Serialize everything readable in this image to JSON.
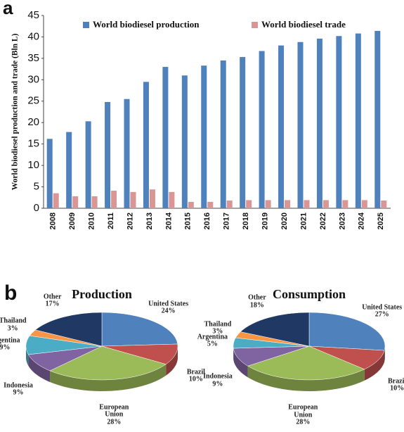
{
  "chart_data": [
    {
      "type": "bar",
      "panel_label": "a",
      "ylabel": "World biodiesel production and trade (Bln L)",
      "categories": [
        "2008",
        "2009",
        "2010",
        "2011",
        "2012",
        "2013",
        "2014",
        "2015",
        "2016",
        "2017",
        "2018",
        "2019",
        "2020",
        "2021",
        "2022",
        "2023",
        "2024",
        "2025"
      ],
      "series": [
        {
          "name": "World biodiesel production",
          "color": "#4f81bd",
          "values": [
            16.2,
            17.8,
            20.3,
            24.8,
            25.5,
            29.5,
            33,
            31,
            33.3,
            34.5,
            35.3,
            36.7,
            38,
            38.8,
            39.6,
            40.2,
            40.8,
            41.4
          ]
        },
        {
          "name": "World biodiesel trade",
          "color": "#d99694",
          "values": [
            3.5,
            2.8,
            2.8,
            4.1,
            3.8,
            4.4,
            3.8,
            1.5,
            1.5,
            1.8,
            1.9,
            1.9,
            1.9,
            1.9,
            1.9,
            1.9,
            1.9,
            1.8
          ]
        }
      ],
      "ylim": [
        0,
        45
      ],
      "yticks": [
        0,
        5,
        10,
        15,
        20,
        25,
        30,
        35,
        40,
        45
      ]
    },
    {
      "type": "pie",
      "panel_label": "b",
      "title": "Production",
      "categories": [
        "United States",
        "Brazil",
        "European Union",
        "Indonesia",
        "Argentina",
        "Thailand",
        "Other"
      ],
      "values": [
        24,
        10,
        28,
        9,
        9,
        3,
        17
      ],
      "value_labels": [
        "24%",
        "10%",
        "28%",
        "9%",
        "9%",
        "3%",
        "17%"
      ],
      "colors": [
        "#4f81bd",
        "#c0504d",
        "#9bbb59",
        "#8064a2",
        "#4bacc6",
        "#f79646",
        "#1f3864"
      ]
    },
    {
      "type": "pie",
      "title": "Consumption",
      "categories": [
        "United States",
        "Brazil",
        "European Union",
        "Indonesia",
        "Argentina",
        "Thailand",
        "Other"
      ],
      "values": [
        27,
        10,
        28,
        9,
        5,
        3,
        18
      ],
      "value_labels": [
        "27%",
        "10%",
        "28%",
        "9%",
        "5%",
        "3%",
        "18%"
      ],
      "colors": [
        "#4f81bd",
        "#c0504d",
        "#9bbb59",
        "#8064a2",
        "#4bacc6",
        "#f79646",
        "#1f3864"
      ]
    }
  ]
}
